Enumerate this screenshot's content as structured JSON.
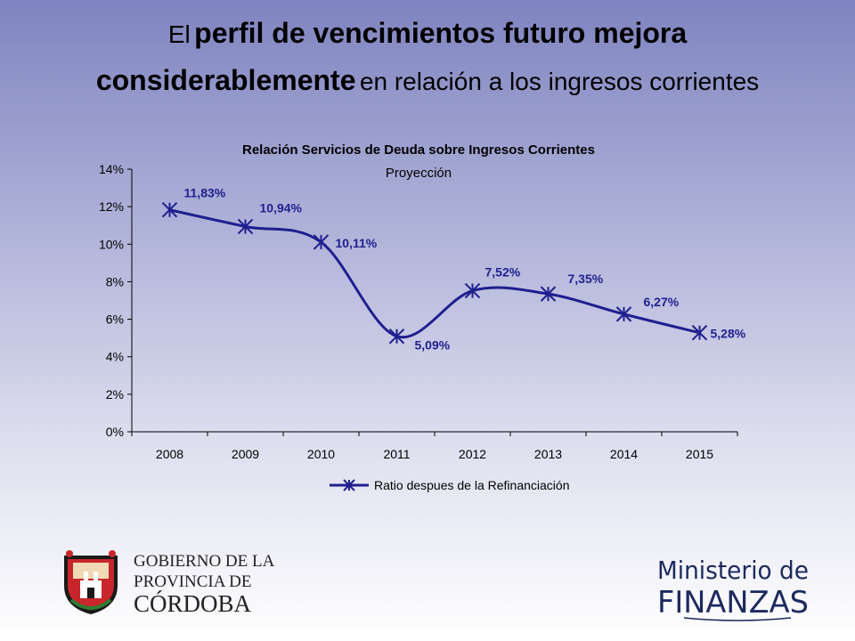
{
  "slide": {
    "title_prefix": "El",
    "title_bold_1": "perfil de vencimientos futuro mejora",
    "title_bold_2": "considerablemente",
    "title_suffix": "en relación a los ingresos corrientes"
  },
  "chart_data": {
    "type": "line",
    "title": "Relación Servicios de Deuda sobre Ingresos Corrientes",
    "subtitle": "Proyección",
    "categories": [
      "2008",
      "2009",
      "2010",
      "2011",
      "2012",
      "2013",
      "2014",
      "2015"
    ],
    "series": [
      {
        "name": "Ratio despues de la Refinanciación",
        "values": [
          11.83,
          10.94,
          10.11,
          5.09,
          7.52,
          7.35,
          6.27,
          5.28
        ],
        "labels": [
          "11,83%",
          "10,94%",
          "10,11%",
          "5,09%",
          "7,52%",
          "7,35%",
          "6,27%",
          "5,28%"
        ],
        "color": "#1f1f8f"
      }
    ],
    "ylim": [
      0,
      14
    ],
    "yticks": [
      "0%",
      "2%",
      "4%",
      "6%",
      "8%",
      "10%",
      "12%",
      "14%"
    ],
    "grid": false,
    "legend_position": "bottom"
  },
  "logos": {
    "left_line1": "GOBIERNO DE LA",
    "left_line2": "PROVINCIA DE",
    "left_line3": "CÓRDOBA",
    "right_line1": "Ministerio de",
    "right_line2": "FINANZAS"
  }
}
